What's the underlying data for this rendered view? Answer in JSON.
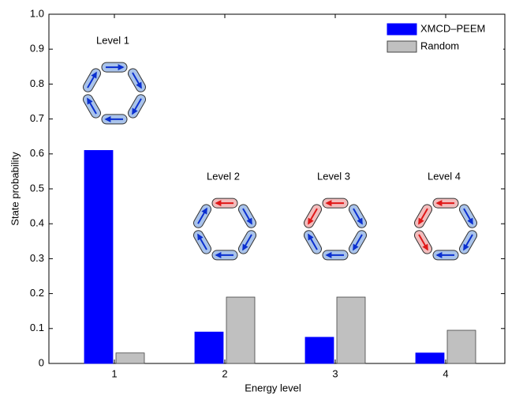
{
  "chart_data": {
    "type": "bar",
    "xlabel": "Energy level",
    "ylabel": "State probability",
    "categories": [
      "1",
      "2",
      "3",
      "4"
    ],
    "series": [
      {
        "name": "XMCD–PEEM",
        "color": "#0000ff",
        "values": [
          0.61,
          0.09,
          0.075,
          0.03
        ]
      },
      {
        "name": "Random",
        "color": "#c0c0c0",
        "values": [
          0.03,
          0.19,
          0.19,
          0.095
        ]
      }
    ],
    "ylim": [
      0,
      1
    ],
    "yticks": [
      0,
      0.1,
      0.2,
      0.3,
      0.4,
      0.5,
      0.6,
      0.7,
      0.8,
      0.9,
      {
        "value": 1,
        "label": "1.0"
      }
    ],
    "legend": "upper right",
    "annotations": [
      "Level 1",
      "Level 2",
      "Level 3",
      "Level 4"
    ]
  }
}
